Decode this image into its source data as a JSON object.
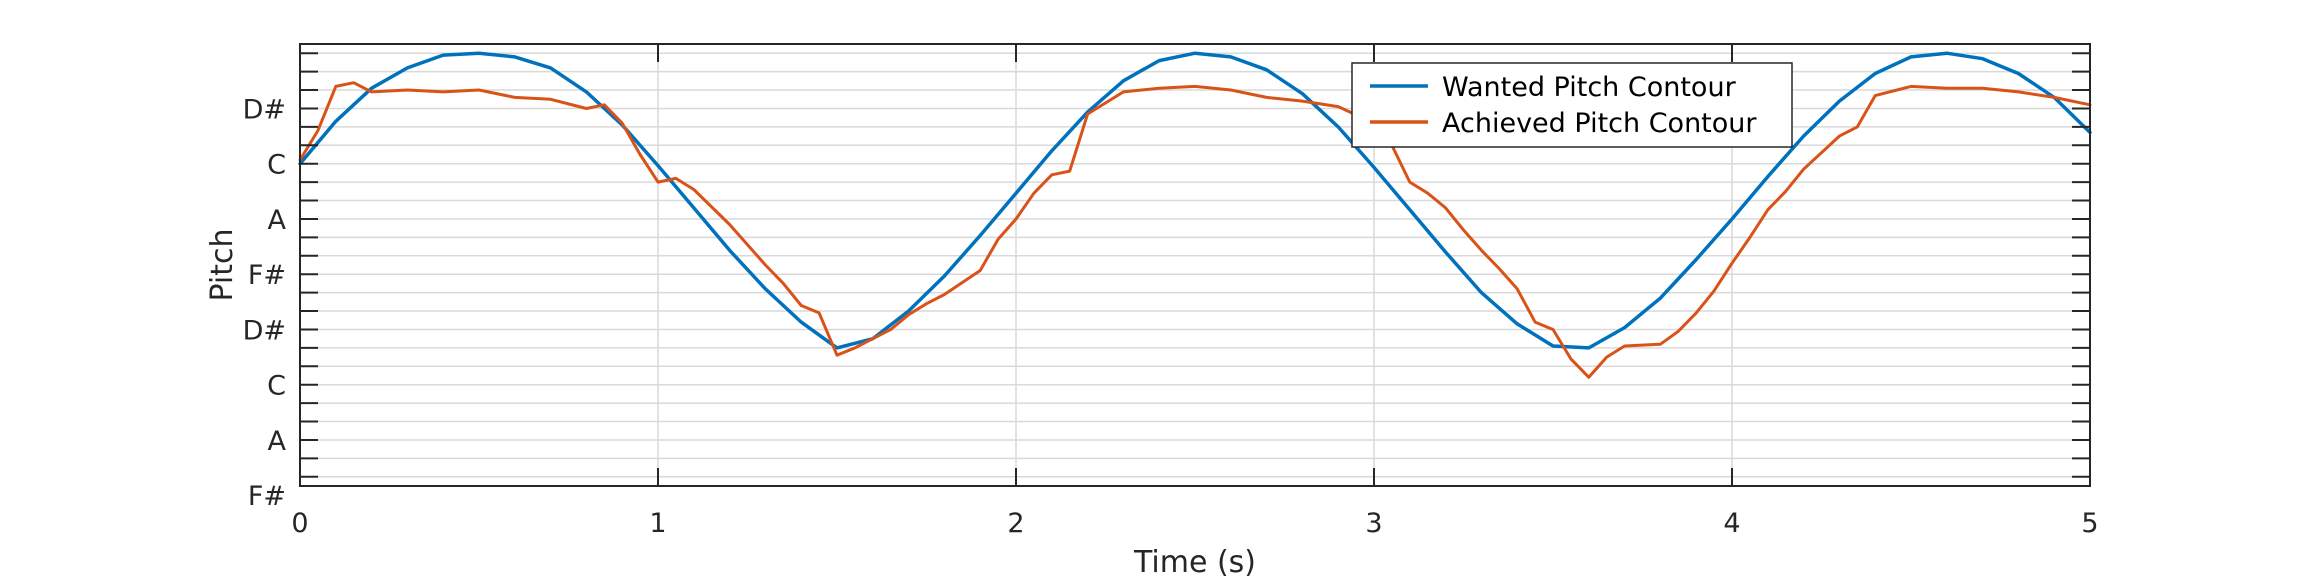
{
  "chart_data": {
    "type": "line",
    "title": "",
    "xlabel": "Time (s)",
    "ylabel": "Pitch",
    "xlim": [
      0,
      5
    ],
    "ylim": [
      -2.5,
      21.5
    ],
    "x_ticks": [
      0,
      1,
      2,
      3,
      4,
      5
    ],
    "x_tick_labels": [
      "0",
      "1",
      "2",
      "3",
      "4",
      "5"
    ],
    "y_tick_values": [
      -3,
      0,
      3,
      6,
      9,
      12,
      15,
      18
    ],
    "y_tick_labels": [
      "F#",
      "A",
      "C",
      "D#",
      "F#",
      "A",
      "C",
      "D#"
    ],
    "y_minor_step": 1,
    "grid": true,
    "legend_position": "top-right",
    "series": [
      {
        "name": "Wanted Pitch Contour",
        "color": "#0072BD",
        "x": [
          0,
          0.1,
          0.2,
          0.3,
          0.4,
          0.5,
          0.6,
          0.7,
          0.8,
          0.9,
          1.0,
          1.1,
          1.2,
          1.3,
          1.4,
          1.5,
          1.6,
          1.7,
          1.8,
          1.9,
          2.0,
          2.1,
          2.2,
          2.3,
          2.4,
          2.5,
          2.6,
          2.7,
          2.8,
          2.9,
          3.0,
          3.1,
          3.2,
          3.3,
          3.4,
          3.5,
          3.6,
          3.7,
          3.8,
          3.9,
          4.0,
          4.1,
          4.2,
          4.3,
          4.4,
          4.5,
          4.6,
          4.7,
          4.8,
          4.9,
          5.0
        ],
        "y": [
          15.0,
          17.3,
          19.1,
          20.2,
          20.9,
          21.0,
          20.8,
          20.2,
          18.9,
          17.1,
          14.9,
          12.6,
          10.3,
          8.2,
          6.4,
          5.0,
          5.5,
          7.0,
          8.9,
          11.1,
          13.4,
          15.7,
          17.8,
          19.5,
          20.6,
          21.0,
          20.8,
          20.1,
          18.8,
          17.0,
          14.8,
          12.5,
          10.2,
          8.0,
          6.3,
          5.1,
          5.0,
          6.1,
          7.7,
          9.8,
          12.0,
          14.3,
          16.5,
          18.4,
          19.9,
          20.8,
          21.0,
          20.7,
          19.9,
          18.6,
          16.7
        ]
      },
      {
        "name": "Achieved Pitch Contour",
        "color": "#D95319",
        "x": [
          0,
          0.05,
          0.1,
          0.15,
          0.2,
          0.3,
          0.4,
          0.5,
          0.6,
          0.7,
          0.8,
          0.85,
          0.9,
          0.95,
          1.0,
          1.05,
          1.1,
          1.2,
          1.25,
          1.3,
          1.35,
          1.4,
          1.45,
          1.5,
          1.55,
          1.6,
          1.65,
          1.7,
          1.75,
          1.8,
          1.9,
          1.95,
          2.0,
          2.05,
          2.1,
          2.15,
          2.2,
          2.3,
          2.4,
          2.5,
          2.6,
          2.7,
          2.8,
          2.9,
          3.0,
          3.05,
          3.1,
          3.15,
          3.2,
          3.25,
          3.3,
          3.35,
          3.4,
          3.45,
          3.5,
          3.55,
          3.6,
          3.65,
          3.7,
          3.8,
          3.85,
          3.9,
          3.95,
          4.0,
          4.05,
          4.1,
          4.15,
          4.2,
          4.3,
          4.35,
          4.4,
          4.5,
          4.6,
          4.7,
          4.8,
          4.9,
          5.0
        ],
        "y": [
          15.2,
          16.8,
          19.2,
          19.4,
          18.9,
          19.0,
          18.9,
          19.0,
          18.6,
          18.5,
          18.0,
          18.2,
          17.2,
          15.5,
          14.0,
          14.2,
          13.6,
          11.7,
          10.6,
          9.5,
          8.5,
          7.3,
          6.9,
          4.6,
          5.0,
          5.5,
          6.0,
          6.8,
          7.4,
          7.9,
          9.2,
          10.9,
          12.0,
          13.4,
          14.4,
          14.6,
          17.7,
          18.9,
          19.1,
          19.2,
          19.0,
          18.6,
          18.4,
          18.1,
          17.2,
          16.0,
          14.0,
          13.4,
          12.6,
          11.4,
          10.3,
          9.3,
          8.2,
          6.4,
          6.0,
          4.4,
          3.4,
          4.5,
          5.1,
          5.2,
          5.9,
          6.9,
          8.1,
          9.6,
          11.0,
          12.5,
          13.5,
          14.7,
          16.5,
          17.0,
          18.7,
          19.2,
          19.1,
          19.1,
          18.9,
          18.6,
          18.2
        ]
      }
    ]
  }
}
